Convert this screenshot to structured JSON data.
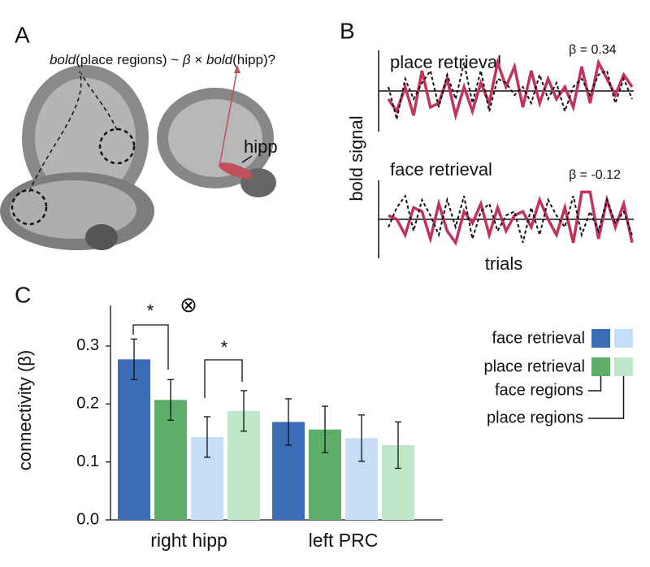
{
  "panel_labels": [
    "A",
    "B",
    "C"
  ],
  "panel_a": {
    "formula": [
      {
        "text": "bold",
        "italic": true
      },
      {
        "text": "(place regions) ~ "
      },
      {
        "text": "β",
        "italic": true
      },
      {
        "text": " × "
      },
      {
        "text": "bold",
        "italic": true
      },
      {
        "text": "(hipp)?"
      }
    ],
    "region_label": "hipp"
  },
  "chart_data": [
    {
      "type": "line",
      "title": "place retrieval",
      "annotation": "β = 0.34",
      "ylim": [
        -1,
        1
      ],
      "series": [
        {
          "color": "#c3325a",
          "dashed": false,
          "values": [
            -0.2,
            -0.5,
            0.1,
            -0.6,
            0.5,
            -0.4,
            -0.3,
            0.3,
            -0.6,
            0.1,
            -0.5,
            0.2,
            -0.3,
            0.7,
            0.1,
            0.6,
            -0.4,
            0.5,
            -0.3,
            0.3,
            -0.2,
            0.1,
            -0.4,
            0.6,
            -0.3,
            0.7,
            0.3,
            -0.1,
            0.4,
            0.1
          ]
        },
        {
          "color": "#111111",
          "dashed": true,
          "values": [
            0.1,
            -0.7,
            0.3,
            -0.2,
            0.2,
            0.5,
            -0.4,
            0.4,
            -0.2,
            0.7,
            -0.3,
            0.5,
            -0.5,
            0.3,
            0.2,
            -0.1,
            0.1,
            -0.3,
            0.4,
            -0.2,
            0.2,
            -0.5,
            0.1,
            0.3,
            -0.1,
            0.4,
            0.5,
            -0.3,
            0.3,
            -0.2
          ]
        }
      ]
    },
    {
      "type": "line",
      "title": "face retrieval",
      "annotation": "β = -0.12",
      "ylim": [
        -1,
        1
      ],
      "series": [
        {
          "color": "#c3325a",
          "dashed": false,
          "values": [
            0.1,
            0.0,
            -0.4,
            0.3,
            0.2,
            -0.5,
            0.4,
            -0.3,
            -0.6,
            0.2,
            -0.1,
            0.4,
            -0.4,
            0.3,
            -0.3,
            0.1,
            0.2,
            -0.2,
            0.5,
            0.0,
            -0.4,
            0.3,
            -0.6,
            0.7,
            0.7,
            -0.5,
            0.5,
            -0.2,
            0.4,
            -0.6
          ]
        },
        {
          "color": "#111111",
          "dashed": true,
          "values": [
            -0.2,
            0.3,
            0.6,
            -0.3,
            0.5,
            0.1,
            -0.4,
            0.5,
            -0.2,
            0.6,
            -0.5,
            0.2,
            0.4,
            -0.3,
            0.1,
            0.2,
            -0.6,
            0.3,
            -0.4,
            0.5,
            0.1,
            -0.2,
            0.6,
            -0.4,
            0.2,
            -0.3,
            0.5,
            -0.1,
            0.2,
            -0.4
          ]
        }
      ]
    },
    {
      "type": "bar",
      "ylabel": "connectivity (β)",
      "categories": [
        "right hipp",
        "left PRC"
      ],
      "ylim": [
        0,
        0.37
      ],
      "yticks": [
        {
          "value": 0,
          "label": "0.0"
        },
        0.1,
        0.2,
        0.3
      ],
      "series": [
        {
          "color": "#3a6db5",
          "values": [
            0.277,
            0.169
          ],
          "errors": [
            0.035,
            0.04
          ]
        },
        {
          "color": "#5cae69",
          "values": [
            0.207,
            0.156
          ],
          "errors": [
            0.035,
            0.04
          ]
        },
        {
          "color": "#c6ddf6",
          "values": [
            0.143,
            0.141
          ],
          "errors": [
            0.035,
            0.04
          ]
        },
        {
          "color": "#c0e6c9",
          "values": [
            0.188,
            0.129
          ],
          "errors": [
            0.035,
            0.04
          ]
        }
      ],
      "annotations": [
        "*",
        "*",
        "⊗"
      ],
      "legend": {
        "rows": [
          "face retrieval",
          "place retrieval"
        ],
        "columns": [
          "face regions",
          "place regions"
        ]
      }
    }
  ]
}
